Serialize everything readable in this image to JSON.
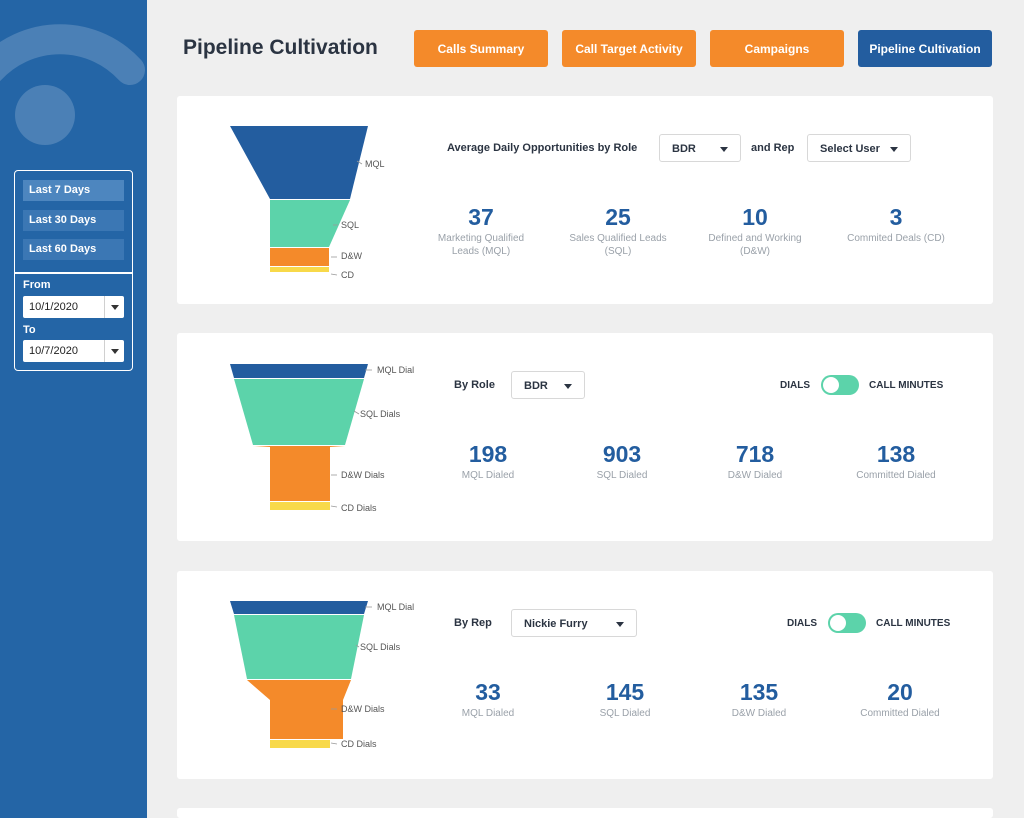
{
  "colors": {
    "sidebar": "#2465a6",
    "orange": "#f48a2a",
    "blue": "#235d9f",
    "mql": "#235d9f",
    "sql": "#5cd3aa",
    "dw": "#f48a2a",
    "cd": "#f8d94a"
  },
  "sidebar": {
    "ranges": [
      "Last 7 Days",
      "Last 30 Days",
      "Last 60 Days"
    ],
    "from_label": "From",
    "from_value": "10/1/2020",
    "to_label": "To",
    "to_value": "10/7/2020"
  },
  "header": {
    "title": "Pipeline Cultivation",
    "nav": [
      "Calls Summary",
      "Call Target Activity",
      "Campaigns",
      "Pipeline Cultivation"
    ]
  },
  "card1": {
    "heading": "Average Daily Opportunities by Role",
    "role_value": "BDR",
    "and_rep": "and Rep",
    "rep_value": "Select User",
    "funnel_labels": [
      "MQL",
      "SQL",
      "D&W",
      "CD"
    ],
    "stats": [
      {
        "value": "37",
        "label_line1": "Marketing Qualified",
        "label_line2": "Leads (MQL)"
      },
      {
        "value": "25",
        "label_line1": "Sales Qualified Leads",
        "label_line2": "(SQL)"
      },
      {
        "value": "10",
        "label_line1": "Defined and Working",
        "label_line2": "(D&W)"
      },
      {
        "value": "3",
        "label_line1": "Commited Deals (CD)",
        "label_line2": ""
      }
    ]
  },
  "card2": {
    "by_label": "By Role",
    "role_value": "BDR",
    "toggle_left": "DIALS",
    "toggle_right": "CALL MINUTES",
    "funnel_labels": [
      "MQL Dial",
      "SQL Dials",
      "D&W Dials",
      "CD Dials"
    ],
    "stats": [
      {
        "value": "198",
        "label": "MQL Dialed"
      },
      {
        "value": "903",
        "label": "SQL Dialed"
      },
      {
        "value": "718",
        "label": "D&W Dialed"
      },
      {
        "value": "138",
        "label": "Committed Dialed"
      }
    ]
  },
  "card3": {
    "by_label": "By Rep",
    "rep_value": "Nickie Furry",
    "toggle_left": "DIALS",
    "toggle_right": "CALL MINUTES",
    "funnel_labels": [
      "MQL Dial",
      "SQL Dials",
      "D&W Dials",
      "CD Dials"
    ],
    "stats": [
      {
        "value": "33",
        "label": "MQL Dialed"
      },
      {
        "value": "145",
        "label": "SQL Dialed"
      },
      {
        "value": "135",
        "label": "D&W Dialed"
      },
      {
        "value": "20",
        "label": "Committed Dialed"
      }
    ]
  }
}
